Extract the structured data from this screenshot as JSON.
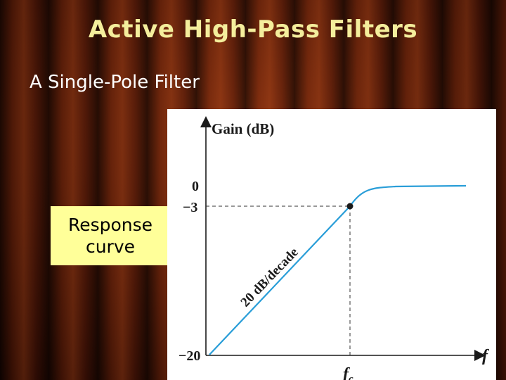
{
  "slide": {
    "title": "Active High-Pass Filters",
    "subtitle": "A Single-Pole Filter"
  },
  "callout": {
    "line1": "Response",
    "line2": "curve"
  },
  "diagram": {
    "y_axis_label": "Gain (dB)",
    "x_axis_label": "f",
    "y_ticks": [
      "0",
      "−3",
      "−20"
    ],
    "cutoff_label": "f",
    "cutoff_subscript": "c",
    "slope_label": "20 dB/decade",
    "curve_color": "#2a9ed8",
    "background_color": "#ffffff"
  }
}
